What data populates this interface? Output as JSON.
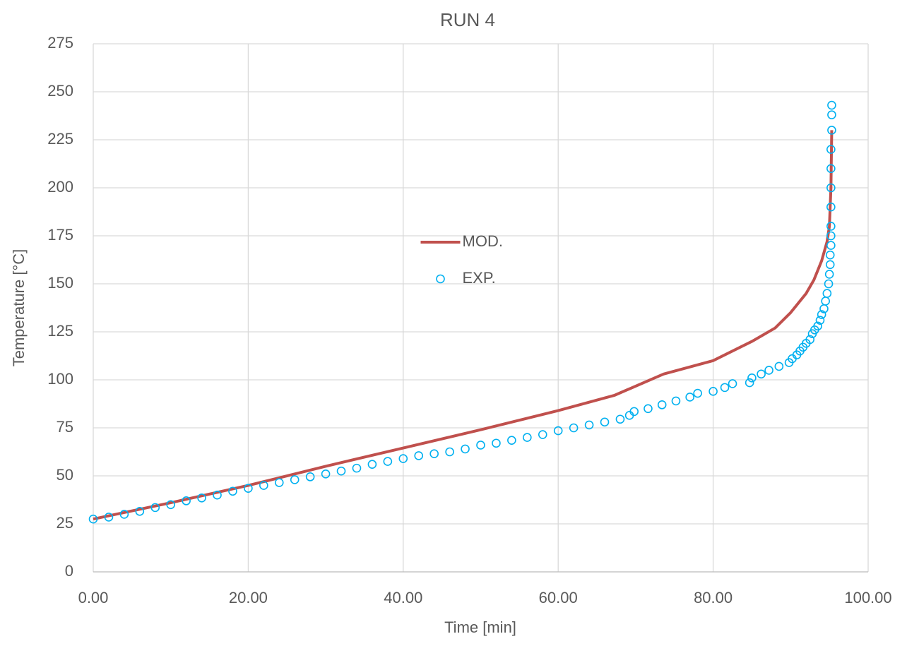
{
  "chart_data": {
    "type": "scatter",
    "title": "RUN 4",
    "x_label": "Time [min]",
    "y_label": "Temperature [°C]",
    "xlim": [
      0,
      100
    ],
    "xticks": [
      {
        "value": 0,
        "label": "0.00"
      },
      {
        "value": 20,
        "label": "20.00"
      },
      {
        "value": 40,
        "label": "40.00"
      },
      {
        "value": 60,
        "label": "60.00"
      },
      {
        "value": 80,
        "label": "80.00"
      },
      {
        "value": 100,
        "label": "100.00"
      }
    ],
    "ylim": [
      0,
      275
    ],
    "yticks": [
      0,
      25,
      50,
      75,
      100,
      125,
      150,
      175,
      200,
      225,
      250,
      275
    ],
    "grid": true,
    "legend": "center",
    "series": [
      {
        "name": "MOD.",
        "style": "line",
        "color": "#c0504d",
        "x": [
          0,
          10,
          20,
          30,
          40,
          50,
          60,
          67.3,
          73.6,
          80,
          85,
          88,
          90,
          92,
          93,
          94,
          94.7,
          95,
          95.2,
          95.3
        ],
        "values": [
          27.5,
          36,
          45,
          55,
          64.5,
          74,
          84,
          92,
          103,
          110,
          120,
          127,
          135,
          145,
          152,
          162,
          172,
          180,
          200,
          230
        ]
      },
      {
        "name": "EXP.",
        "style": "marker",
        "color": "#00b0f0",
        "x": [
          0,
          2,
          4,
          6,
          8,
          10,
          12,
          14,
          16,
          18,
          20,
          22,
          24,
          26,
          28,
          30,
          32,
          34,
          36,
          38,
          40,
          42,
          44,
          46,
          48,
          50,
          52,
          54,
          56,
          58,
          60,
          62,
          64,
          66,
          68,
          69.2,
          69.8,
          71.6,
          73.4,
          75.2,
          77,
          78,
          80,
          81.5,
          82.5,
          84.7,
          85,
          86.2,
          87.2,
          88.5,
          89.8,
          90.2,
          90.8,
          91.2,
          91.6,
          92,
          92.5,
          92.8,
          93.1,
          93.5,
          93.8,
          94,
          94.3,
          94.5,
          94.7,
          94.9,
          95,
          95.1,
          95.1,
          95.2,
          95.2,
          95.2,
          95.2,
          95.2,
          95.2,
          95.2,
          95.3,
          95.3,
          95.3
        ],
        "values": [
          27.5,
          28.5,
          30,
          31.5,
          33.5,
          35,
          37,
          38.5,
          40,
          42,
          43.5,
          45,
          46.5,
          48,
          49.5,
          51,
          52.5,
          54,
          56,
          57.5,
          59,
          60.5,
          61.5,
          62.5,
          64,
          66,
          67,
          68.5,
          70,
          71.5,
          73.5,
          75,
          76.5,
          78,
          79.5,
          81.5,
          83.5,
          85,
          87,
          89,
          91,
          93,
          94,
          96,
          98,
          98.5,
          101,
          103,
          105,
          107,
          109,
          111,
          113,
          115,
          117,
          119,
          121,
          124,
          126,
          128,
          131,
          134,
          137,
          141,
          145,
          150,
          155,
          160,
          165,
          170,
          175,
          180,
          190,
          200,
          210,
          220,
          230,
          238,
          243
        ]
      }
    ]
  }
}
